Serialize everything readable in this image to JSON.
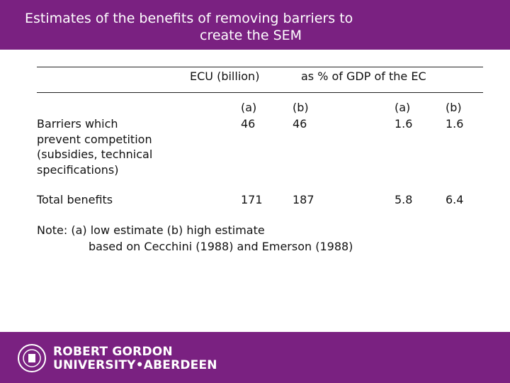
{
  "header": {
    "title_lines": [
      "Estimates of the benefits of removing barriers to",
      "create the SEM"
    ]
  },
  "table": {
    "group_headers": [
      "ECU (billion)",
      "as % of GDP of the EC"
    ],
    "sub_headers": [
      "(a)",
      "(b)",
      "(a)",
      "(b)"
    ],
    "rows": [
      {
        "label_lines": [
          "Barriers which",
          "prevent competition",
          "(subsidies, technical",
          "specifications)"
        ],
        "values": [
          46,
          46,
          1.6,
          1.6
        ]
      },
      {
        "label_lines": [
          "Total benefits"
        ],
        "values": [
          171,
          187,
          5.8,
          6.4
        ]
      }
    ]
  },
  "note_lines": [
    "Note: (a) low estimate (b) high estimate",
    "based on Cecchini (1988) and Emerson (1988)"
  ],
  "footer": {
    "logo_lines": [
      "ROBERT GORDON",
      "UNIVERSITY•ABERDEEN"
    ]
  }
}
